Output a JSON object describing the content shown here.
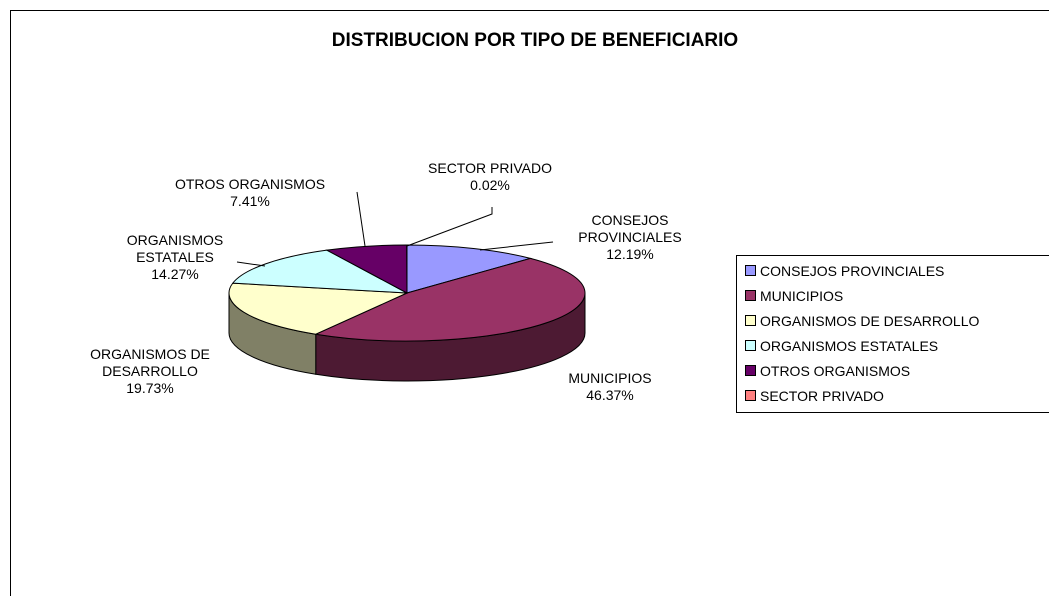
{
  "chart_data": {
    "type": "pie",
    "title": "DISTRIBUCION POR TIPO DE BENEFICIARIO",
    "categories": [
      "CONSEJOS PROVINCIALES",
      "MUNICIPIOS",
      "ORGANISMOS DE DESARROLLO",
      "ORGANISMOS ESTATALES",
      "OTROS ORGANISMOS",
      "SECTOR PRIVADO"
    ],
    "values": [
      12.19,
      46.37,
      19.73,
      14.27,
      7.41,
      0.02
    ],
    "value_labels": [
      "12.19%",
      "46.37%",
      "19.73%",
      "14.27%",
      "7.41%",
      "0.02%"
    ],
    "colors": [
      "#9999ff",
      "#993366",
      "#ffffcc",
      "#ccffff",
      "#660066",
      "#ff8080"
    ],
    "legend": "right"
  }
}
